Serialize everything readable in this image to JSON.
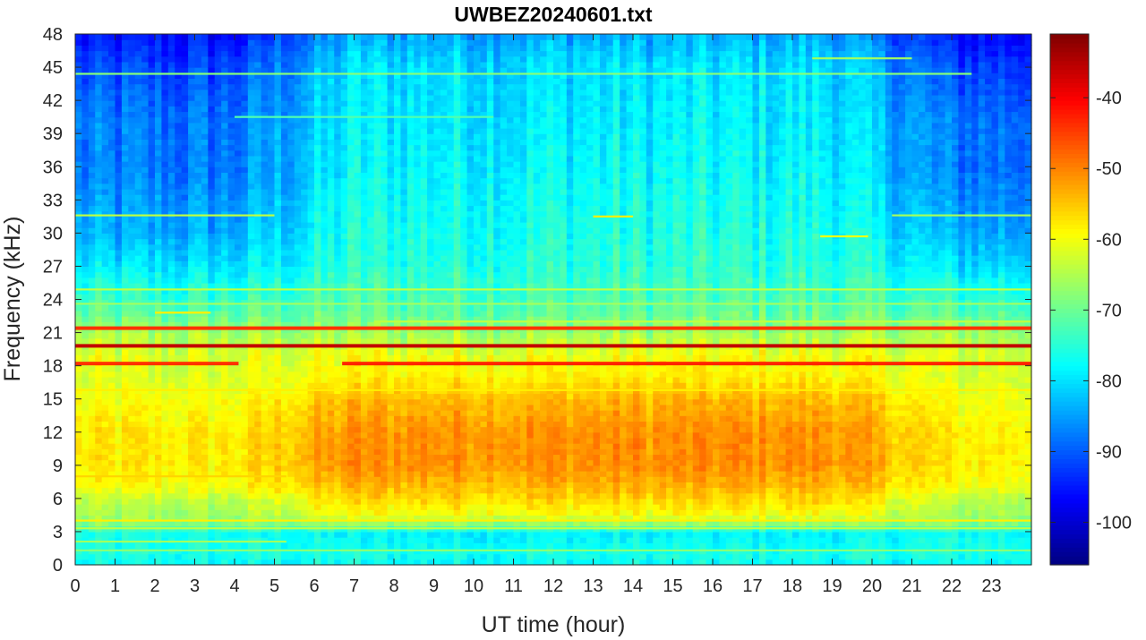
{
  "chart_data": {
    "type": "heatmap",
    "title": "UWBEZ20240601.txt",
    "xlabel": "UT time (hour)",
    "ylabel": "Frequency (kHz)",
    "xlim": [
      0,
      24
    ],
    "ylim": [
      0,
      48
    ],
    "x_ticks": [
      0,
      1,
      2,
      3,
      4,
      5,
      6,
      7,
      8,
      9,
      10,
      11,
      12,
      13,
      14,
      15,
      16,
      17,
      18,
      19,
      20,
      21,
      22,
      23
    ],
    "y_ticks": [
      0,
      3,
      6,
      9,
      12,
      15,
      18,
      21,
      24,
      27,
      30,
      33,
      36,
      39,
      42,
      45,
      48
    ],
    "colorbar": {
      "colormap": "jet",
      "range": [
        -106,
        -31
      ],
      "ticks": [
        -100,
        -90,
        -80,
        -70,
        -60,
        -50,
        -40
      ]
    },
    "background_profile": {
      "description_units": "frequency kHz -> power dB",
      "frequency": [
        0,
        1,
        3,
        3.8,
        4.5,
        6,
        7,
        9,
        12,
        15,
        17,
        19,
        21,
        23,
        25,
        27,
        30,
        33,
        36,
        40,
        45,
        48
      ],
      "power_night": [
        -78,
        -76,
        -77,
        -68,
        -66,
        -64,
        -60,
        -58,
        -58,
        -60,
        -62,
        -62,
        -66,
        -72,
        -76,
        -80,
        -84,
        -86,
        -88,
        -88,
        -92,
        -96
      ],
      "power_day": [
        -78,
        -76,
        -79,
        -66,
        -60,
        -56,
        -54,
        -51,
        -51,
        -54,
        -58,
        -60,
        -66,
        -71,
        -73,
        -75,
        -76,
        -77,
        -78,
        -79,
        -80,
        -84
      ],
      "daytime_hours": [
        5.5,
        20.5
      ]
    },
    "lines": [
      {
        "frequency": 19.8,
        "start": 0,
        "end": 24,
        "power": -36
      },
      {
        "frequency": 21.4,
        "start": 0,
        "end": 24,
        "power": -44
      },
      {
        "frequency": 18.2,
        "start": 0,
        "end": 4.1,
        "power": -44
      },
      {
        "frequency": 18.2,
        "start": 6.7,
        "end": 24,
        "power": -43
      },
      {
        "frequency": 24.9,
        "start": 0,
        "end": 24,
        "power": -64
      },
      {
        "frequency": 23.6,
        "start": 0,
        "end": 24,
        "power": -66
      },
      {
        "frequency": 31.6,
        "start": 0,
        "end": 5,
        "power": -64
      },
      {
        "frequency": 31.6,
        "start": 20.5,
        "end": 24,
        "power": -66
      },
      {
        "frequency": 44.4,
        "start": 0,
        "end": 22.5,
        "power": -68
      },
      {
        "frequency": 45.8,
        "start": 18.5,
        "end": 21,
        "power": -66
      },
      {
        "frequency": 15.8,
        "start": 0,
        "end": 24,
        "power": -58
      },
      {
        "frequency": 8.0,
        "start": 0,
        "end": 5.3,
        "power": -56
      },
      {
        "frequency": 4.0,
        "start": 0,
        "end": 24,
        "power": -58
      },
      {
        "frequency": 3.3,
        "start": 0,
        "end": 24,
        "power": -64
      },
      {
        "frequency": 2.1,
        "start": 0,
        "end": 5.3,
        "power": -66
      },
      {
        "frequency": 1.3,
        "start": 0,
        "end": 24,
        "power": -68
      },
      {
        "frequency": 22.0,
        "start": 7.5,
        "end": 24,
        "power": -64
      },
      {
        "frequency": 22.8,
        "start": 2,
        "end": 3.4,
        "power": -58
      },
      {
        "frequency": 31.5,
        "start": 13,
        "end": 14,
        "power": -58
      },
      {
        "frequency": 29.7,
        "start": 18.7,
        "end": 19.9,
        "power": -60
      },
      {
        "frequency": 40.5,
        "start": 4,
        "end": 10.5,
        "power": -72
      }
    ]
  }
}
